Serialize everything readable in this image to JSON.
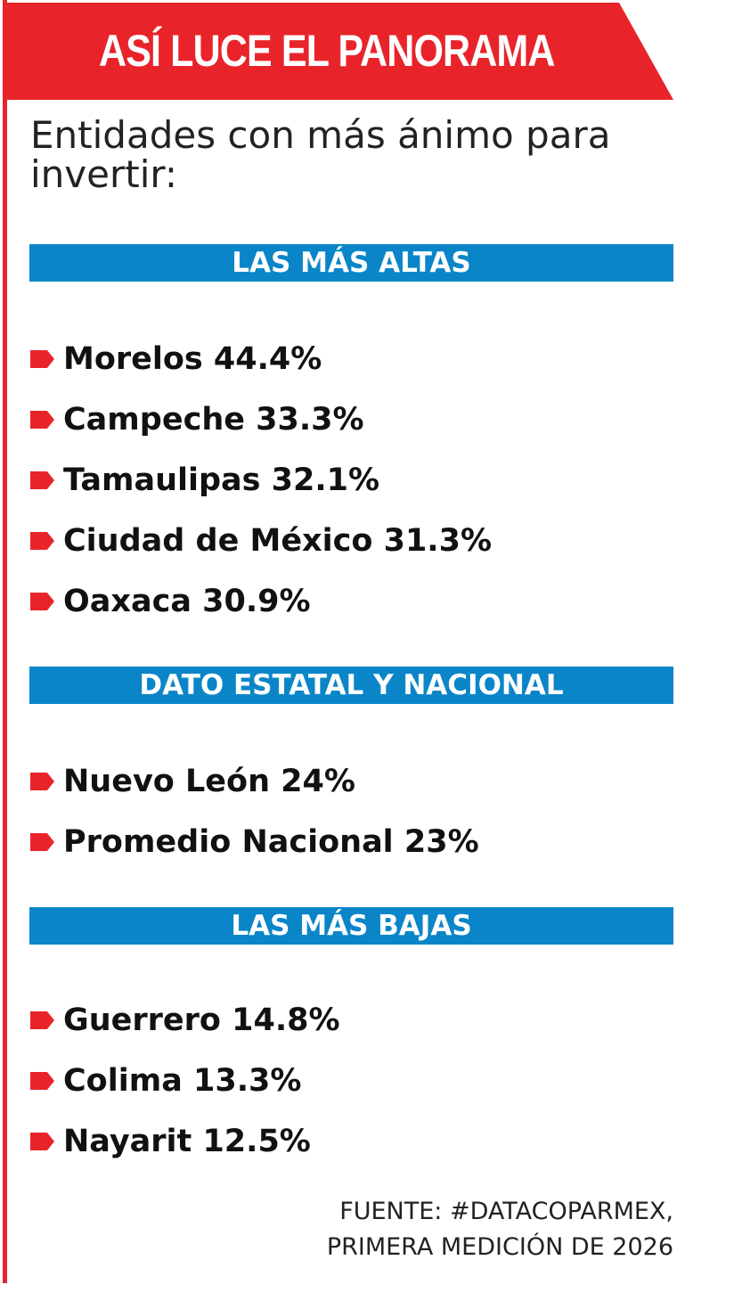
{
  "header": {
    "title": "ASÍ LUCE EL PANORAMA"
  },
  "intro": "Entidades con más ánimo para invertir:",
  "sections": [
    {
      "title": "LAS MÁS ALTAS",
      "items": [
        {
          "label": "Morelos 44.4%"
        },
        {
          "label": "Campeche 33.3%"
        },
        {
          "label": "Tamaulipas 32.1%"
        },
        {
          "label": "Ciudad de México 31.3%"
        },
        {
          "label": "Oaxaca 30.9%"
        }
      ]
    },
    {
      "title": "DATO ESTATAL Y NACIONAL",
      "items": [
        {
          "label": "Nuevo León 24%"
        },
        {
          "label": "Promedio Nacional 23%"
        }
      ]
    },
    {
      "title": "LAS MÁS BAJAS",
      "items": [
        {
          "label": "Guerrero 14.8%"
        },
        {
          "label": "Colima 13.3%"
        },
        {
          "label": "Nayarit 12.5%"
        }
      ]
    }
  ],
  "source": {
    "line1": "FUENTE: #DATACOPARMEX,",
    "line2": "PRIMERA MEDICIÓN DE 2026"
  },
  "colors": {
    "accent_red": "#e8242a",
    "section_blue": "#0a86c8"
  },
  "icons": {
    "bullet": "red-arrow-bullet-icon"
  }
}
